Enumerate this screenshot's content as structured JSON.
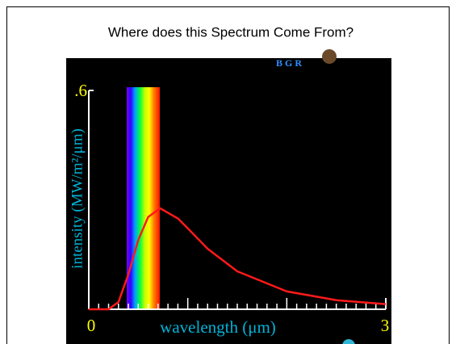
{
  "chart_data": {
    "type": "line",
    "title": "Where does this Spectrum Come From?",
    "annotation": "B G R",
    "xlabel": "wavelength (μm)",
    "ylabel": "intensity (MW/m²/μm)",
    "x": [
      0,
      0.2,
      0.3,
      0.4,
      0.5,
      0.6,
      0.72,
      0.9,
      1.0,
      1.2,
      1.5,
      2.0,
      2.5,
      3.0
    ],
    "series": [
      {
        "color": "#ff1a1a",
        "values": [
          0,
          0,
          0.02,
          0.096,
          0.19,
          0.253,
          0.277,
          0.249,
          0.222,
          0.166,
          0.104,
          0.049,
          0.025,
          0.014
        ]
      }
    ],
    "xlim": [
      0,
      3
    ],
    "xticks": [
      0,
      3
    ],
    "ylim": [
      0,
      0.6
    ],
    "yticks": [
      {
        "value": 0.6,
        "label": ".6"
      }
    ]
  }
}
